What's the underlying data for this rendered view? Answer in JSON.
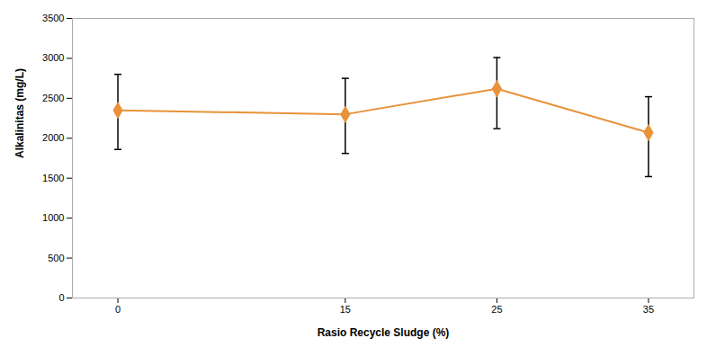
{
  "chart_data": {
    "type": "line",
    "xlabel": "Rasio Recycle Sludge (%)",
    "ylabel": "Alkalinitas (mg/L)",
    "x": [
      0,
      15,
      25,
      35
    ],
    "values": [
      2350,
      2300,
      2620,
      2070
    ],
    "yerr_upper": [
      450,
      450,
      390,
      450
    ],
    "yerr_lower": [
      490,
      490,
      500,
      550
    ],
    "color": "#E8923A",
    "marker": "diamond",
    "xlim": [
      -3,
      38
    ],
    "xticks": [
      0,
      15,
      25,
      35
    ],
    "ylim": [
      0,
      3500
    ],
    "yticks": [
      0,
      500,
      1000,
      1500,
      2000,
      2500,
      3000,
      3500
    ],
    "grid": false
  }
}
